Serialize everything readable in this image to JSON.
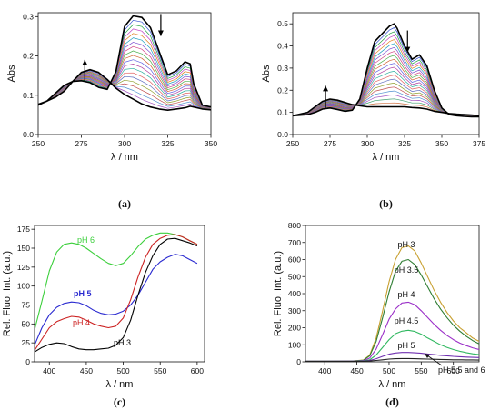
{
  "chart_data": [
    {
      "type": "line",
      "panel_label": "(a)",
      "xlabel": "λ / nm",
      "ylabel": "Abs",
      "xlim": [
        250,
        350
      ],
      "ylim": [
        0,
        0.31
      ],
      "xticks": [
        250,
        275,
        300,
        325,
        350
      ],
      "yticks": [
        0.0,
        0.1,
        0.2,
        0.3
      ],
      "n_series": 20,
      "series": [
        {
          "x": [
            250,
            255,
            260,
            265,
            270,
            275,
            280,
            285,
            290,
            295,
            300,
            305,
            310,
            315,
            320,
            325,
            330,
            335,
            338,
            340,
            345,
            350
          ],
          "values": [
            0.075,
            0.085,
            0.105,
            0.125,
            0.135,
            0.137,
            0.132,
            0.12,
            0.115,
            0.16,
            0.275,
            0.302,
            0.298,
            0.272,
            0.212,
            0.152,
            0.162,
            0.185,
            0.18,
            0.13,
            0.075,
            0.07
          ]
        },
        {
          "x": [
            250,
            255,
            260,
            265,
            270,
            275,
            280,
            285,
            290,
            295,
            300,
            305,
            310,
            315,
            320,
            325,
            330,
            335,
            338,
            340,
            345,
            350
          ],
          "values": [
            0.077,
            0.085,
            0.095,
            0.11,
            0.135,
            0.158,
            0.165,
            0.158,
            0.14,
            0.118,
            0.102,
            0.09,
            0.078,
            0.07,
            0.065,
            0.062,
            0.065,
            0.068,
            0.072,
            0.07,
            0.065,
            0.063
          ]
        }
      ],
      "annotations": [
        {
          "text": "↑",
          "x": 277,
          "y": 0.19
        },
        {
          "text": "↓",
          "x": 321,
          "y": 0.29
        }
      ]
    },
    {
      "type": "line",
      "panel_label": "(b)",
      "xlabel": "λ / nm",
      "ylabel": "Abs",
      "xlim": [
        250,
        375
      ],
      "ylim": [
        0,
        0.55
      ],
      "xticks": [
        250,
        275,
        300,
        325,
        350,
        375
      ],
      "yticks": [
        0.0,
        0.1,
        0.2,
        0.3,
        0.4,
        0.5
      ],
      "n_series": 22,
      "series": [
        {
          "x": [
            250,
            260,
            265,
            270,
            275,
            280,
            285,
            290,
            295,
            300,
            305,
            310,
            315,
            318,
            320,
            325,
            330,
            335,
            340,
            345,
            350,
            355,
            360,
            365,
            370,
            375
          ],
          "values": [
            0.085,
            0.09,
            0.1,
            0.115,
            0.12,
            0.113,
            0.105,
            0.11,
            0.16,
            0.3,
            0.42,
            0.455,
            0.49,
            0.5,
            0.48,
            0.4,
            0.34,
            0.36,
            0.31,
            0.2,
            0.12,
            0.09,
            0.085,
            0.082,
            0.08,
            0.08
          ]
        },
        {
          "x": [
            250,
            260,
            265,
            270,
            275,
            280,
            285,
            290,
            295,
            300,
            305,
            310,
            315,
            318,
            320,
            325,
            330,
            335,
            340,
            345,
            350,
            355,
            360,
            365,
            370,
            375
          ],
          "values": [
            0.085,
            0.1,
            0.125,
            0.15,
            0.16,
            0.155,
            0.145,
            0.135,
            0.13,
            0.125,
            0.125,
            0.125,
            0.125,
            0.125,
            0.125,
            0.125,
            0.122,
            0.12,
            0.115,
            0.105,
            0.1,
            0.095,
            0.092,
            0.09,
            0.088,
            0.085
          ]
        }
      ],
      "annotations": [
        {
          "text": "↑",
          "x": 272,
          "y": 0.22
        },
        {
          "text": "↓",
          "x": 327,
          "y": 0.44
        }
      ]
    },
    {
      "type": "line",
      "panel_label": "(c)",
      "xlabel": "λ / nm",
      "ylabel": "Rel. Fluo. Int. (a.u.)",
      "xlim": [
        380,
        610
      ],
      "ylim": [
        0,
        180
      ],
      "xticks": [
        400,
        450,
        500,
        550,
        600
      ],
      "yticks": [
        0,
        25,
        50,
        75,
        100,
        125,
        150,
        175
      ],
      "series": [
        {
          "name": "pH 6",
          "color": "#3ccf3c",
          "x": [
            380,
            390,
            400,
            410,
            420,
            430,
            440,
            450,
            460,
            470,
            480,
            490,
            500,
            510,
            520,
            530,
            540,
            550,
            560,
            570,
            580,
            590,
            600
          ],
          "values": [
            42,
            80,
            120,
            145,
            155,
            157,
            155,
            150,
            143,
            136,
            130,
            127,
            130,
            140,
            152,
            162,
            167,
            170,
            170,
            168,
            165,
            160,
            155
          ]
        },
        {
          "name": "pH 5",
          "color": "#2a2ad0",
          "x": [
            380,
            390,
            400,
            410,
            420,
            430,
            440,
            450,
            460,
            470,
            480,
            490,
            500,
            510,
            520,
            530,
            540,
            550,
            560,
            570,
            580,
            590,
            600
          ],
          "values": [
            22,
            45,
            62,
            72,
            77,
            79,
            78,
            74,
            68,
            64,
            62,
            63,
            67,
            75,
            88,
            105,
            122,
            132,
            138,
            142,
            140,
            135,
            130
          ]
        },
        {
          "name": "pH 4",
          "color": "#cc2222",
          "x": [
            380,
            390,
            400,
            410,
            420,
            430,
            440,
            450,
            460,
            470,
            480,
            490,
            500,
            510,
            520,
            530,
            540,
            550,
            560,
            570,
            580,
            590,
            600
          ],
          "values": [
            15,
            30,
            45,
            53,
            57,
            60,
            59,
            55,
            50,
            47,
            45,
            47,
            58,
            82,
            112,
            138,
            155,
            163,
            167,
            168,
            165,
            160,
            155
          ]
        },
        {
          "name": "pH 3",
          "color": "#000000",
          "x": [
            380,
            390,
            400,
            410,
            420,
            430,
            440,
            450,
            460,
            470,
            480,
            490,
            500,
            510,
            520,
            530,
            540,
            550,
            560,
            570,
            580,
            590,
            600
          ],
          "values": [
            13,
            19,
            23,
            25,
            24,
            20,
            17,
            16,
            16,
            17,
            18,
            22,
            32,
            55,
            88,
            118,
            140,
            155,
            162,
            163,
            160,
            157,
            153
          ]
        }
      ]
    },
    {
      "type": "line",
      "panel_label": "(d)",
      "xlabel": "λ / nm",
      "ylabel": "Rel. Fluo. Int. (a.u.)",
      "xlim": [
        370,
        640
      ],
      "ylim": [
        0,
        800
      ],
      "xticks": [
        400,
        450,
        500,
        550,
        600
      ],
      "yticks": [
        0,
        100,
        200,
        300,
        400,
        500,
        600,
        700,
        800
      ],
      "series": [
        {
          "name": "pH 3",
          "color": "#c8a030",
          "x": [
            370,
            400,
            440,
            460,
            470,
            480,
            490,
            500,
            510,
            520,
            530,
            540,
            550,
            560,
            570,
            580,
            590,
            600,
            610,
            620,
            630,
            640
          ],
          "values": [
            3,
            3,
            4,
            10,
            40,
            140,
            300,
            470,
            600,
            670,
            680,
            650,
            580,
            500,
            420,
            350,
            290,
            240,
            200,
            170,
            140,
            120
          ]
        },
        {
          "name": "pH 3.5",
          "color": "#2e7d32",
          "x": [
            370,
            400,
            440,
            460,
            470,
            480,
            490,
            500,
            510,
            520,
            530,
            540,
            550,
            560,
            570,
            580,
            590,
            600,
            610,
            620,
            630,
            640
          ],
          "values": [
            3,
            3,
            4,
            9,
            35,
            120,
            260,
            410,
            530,
            590,
            600,
            570,
            510,
            440,
            370,
            310,
            260,
            215,
            180,
            150,
            125,
            105
          ]
        },
        {
          "name": "pH 4",
          "color": "#9b30c8",
          "x": [
            370,
            400,
            440,
            460,
            470,
            480,
            490,
            500,
            510,
            520,
            530,
            540,
            550,
            560,
            570,
            580,
            590,
            600,
            610,
            620,
            630,
            640
          ],
          "values": [
            3,
            3,
            4,
            7,
            22,
            75,
            160,
            250,
            310,
            345,
            350,
            335,
            300,
            260,
            220,
            185,
            155,
            130,
            110,
            95,
            82,
            72
          ]
        },
        {
          "name": "pH 4.5",
          "color": "#30b860",
          "x": [
            370,
            400,
            440,
            460,
            470,
            480,
            490,
            500,
            510,
            520,
            530,
            540,
            550,
            560,
            570,
            580,
            590,
            600,
            610,
            620,
            630,
            640
          ],
          "values": [
            3,
            3,
            3,
            5,
            12,
            40,
            85,
            130,
            165,
            180,
            185,
            178,
            162,
            140,
            120,
            100,
            85,
            72,
            62,
            54,
            47,
            42
          ]
        },
        {
          "name": "pH 5",
          "color": "#7030b0",
          "x": [
            370,
            400,
            440,
            460,
            470,
            480,
            490,
            500,
            510,
            520,
            530,
            540,
            550,
            560,
            570,
            580,
            590,
            600,
            610,
            620,
            630,
            640
          ],
          "values": [
            3,
            3,
            3,
            4,
            8,
            18,
            32,
            45,
            52,
            55,
            55,
            53,
            50,
            46,
            42,
            38,
            35,
            32,
            30,
            28,
            26,
            25
          ]
        },
        {
          "name": "pH 5.5 and 6",
          "color": "#222222",
          "x": [
            370,
            400,
            440,
            460,
            470,
            480,
            490,
            500,
            510,
            520,
            530,
            540,
            550,
            560,
            570,
            580,
            590,
            600,
            610,
            620,
            630,
            640
          ],
          "values": [
            3,
            3,
            3,
            3,
            5,
            8,
            12,
            16,
            18,
            19,
            19,
            18,
            17,
            16,
            15,
            14,
            13,
            12,
            12,
            11,
            11,
            10
          ]
        }
      ]
    }
  ]
}
